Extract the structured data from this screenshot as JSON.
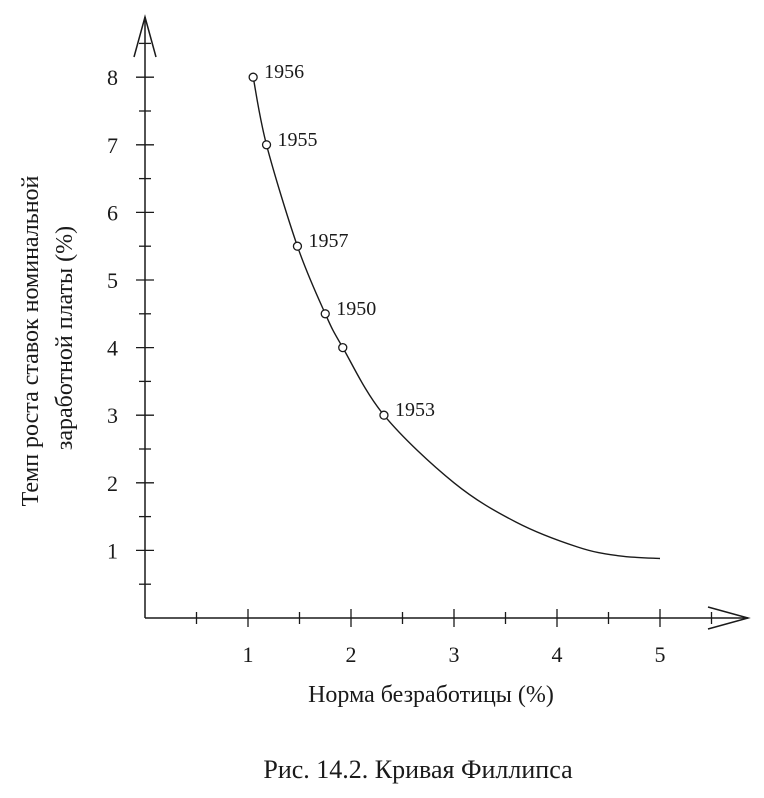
{
  "chart_data": {
    "type": "line",
    "title": "",
    "caption": "Рис. 14.2. Кривая Филлипса",
    "xlabel": "Норма безработицы (%)",
    "ylabel_lines": [
      "Темп роста ставок номинальной",
      "заработной платы (%)"
    ],
    "xlim": [
      0,
      5.8
    ],
    "ylim": [
      0,
      8.9
    ],
    "x_ticks": [
      1,
      2,
      3,
      4,
      5
    ],
    "y_ticks": [
      1,
      2,
      3,
      4,
      5,
      6,
      7,
      8
    ],
    "grid": false,
    "curve": [
      {
        "x": 1.05,
        "y": 8.0
      },
      {
        "x": 1.18,
        "y": 7.0
      },
      {
        "x": 1.48,
        "y": 5.5
      },
      {
        "x": 1.75,
        "y": 4.5
      },
      {
        "x": 1.92,
        "y": 4.0
      },
      {
        "x": 2.32,
        "y": 3.0
      },
      {
        "x": 3.0,
        "y": 2.0
      },
      {
        "x": 3.6,
        "y": 1.42
      },
      {
        "x": 4.2,
        "y": 1.05
      },
      {
        "x": 4.6,
        "y": 0.92
      },
      {
        "x": 5.0,
        "y": 0.88
      }
    ],
    "points": [
      {
        "x": 1.05,
        "y": 8.0,
        "label": "1956"
      },
      {
        "x": 1.18,
        "y": 7.0,
        "label": "1955"
      },
      {
        "x": 1.48,
        "y": 5.5,
        "label": "1957"
      },
      {
        "x": 1.75,
        "y": 4.5,
        "label": "1950"
      },
      {
        "x": 1.92,
        "y": 4.0,
        "label": ""
      },
      {
        "x": 2.32,
        "y": 3.0,
        "label": "1953"
      }
    ]
  }
}
